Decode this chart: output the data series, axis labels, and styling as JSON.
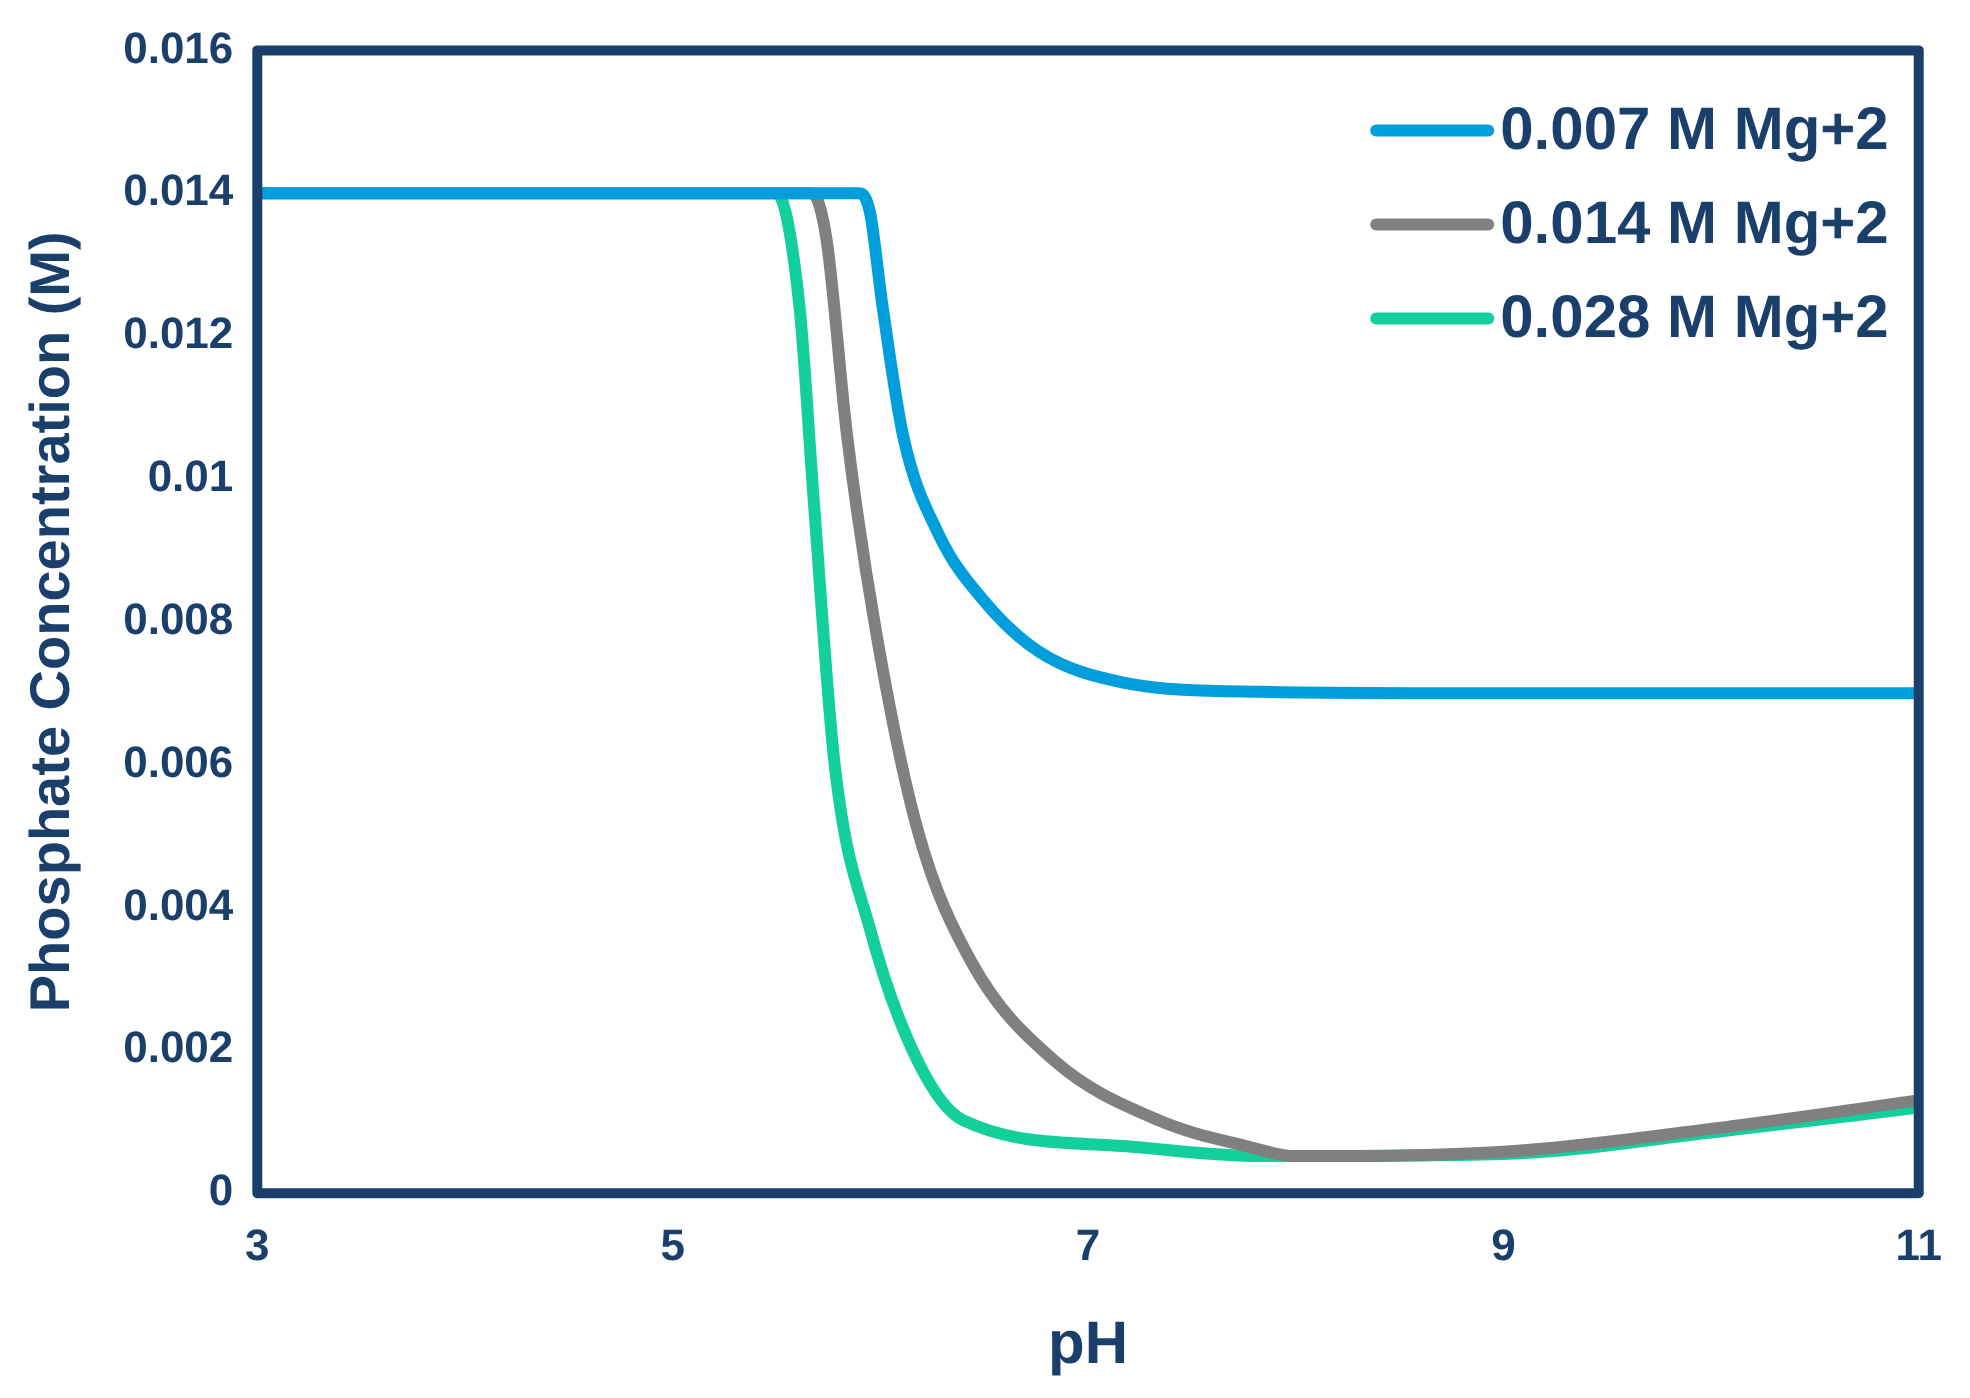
{
  "chart_data": {
    "type": "line",
    "xlabel": "pH",
    "ylabel": "Phosphate Concentration (M)",
    "xlim": [
      3,
      11
    ],
    "xticks": [
      3,
      5,
      7,
      9,
      11
    ],
    "ylim": [
      0,
      0.016
    ],
    "yticks": [
      0,
      0.002,
      0.004,
      0.006,
      0.008,
      0.01,
      0.012,
      0.014,
      0.016
    ],
    "grid": false,
    "legend": "top right",
    "marker": "none",
    "line_style": "solid",
    "series": [
      {
        "name": "0.007 M Mg+2",
        "color": "#009fdb",
        "x": [
          3,
          5.5,
          5.9,
          5.95,
          6.01,
          6.11,
          6.28,
          6.5,
          6.77,
          7.17,
          7.83,
          9,
          11
        ],
        "values": [
          0.014,
          0.014,
          0.014,
          0.01373,
          0.01243,
          0.0106,
          0.00923,
          0.00829,
          0.00757,
          0.00715,
          0.00702,
          0.007,
          0.007
        ]
      },
      {
        "name": "0.014 M Mg+2",
        "color": "#808080",
        "x": [
          3,
          5.67,
          5.74,
          5.84,
          5.98,
          6.18,
          6.44,
          6.84,
          7.34,
          7.76,
          8,
          9,
          10,
          11
        ],
        "values": [
          0.014,
          0.014,
          0.01337,
          0.0106,
          0.00785,
          0.00508,
          0.00323,
          0.00185,
          0.00102,
          0.00066,
          0.00052,
          0.00058,
          0.0009,
          0.0013
        ]
      },
      {
        "name": "0.028 M Mg+2",
        "color": "#12cf9b",
        "x": [
          3,
          5.45,
          5.5,
          5.61,
          5.68,
          5.78,
          5.95,
          6.18,
          6.4,
          7.17,
          7.83,
          9,
          10,
          11
        ],
        "values": [
          0.014,
          0.014,
          0.014,
          0.01243,
          0.00967,
          0.006,
          0.0037,
          0.00185,
          0.00102,
          0.00066,
          0.00052,
          0.00055,
          0.00085,
          0.0012
        ]
      }
    ]
  }
}
